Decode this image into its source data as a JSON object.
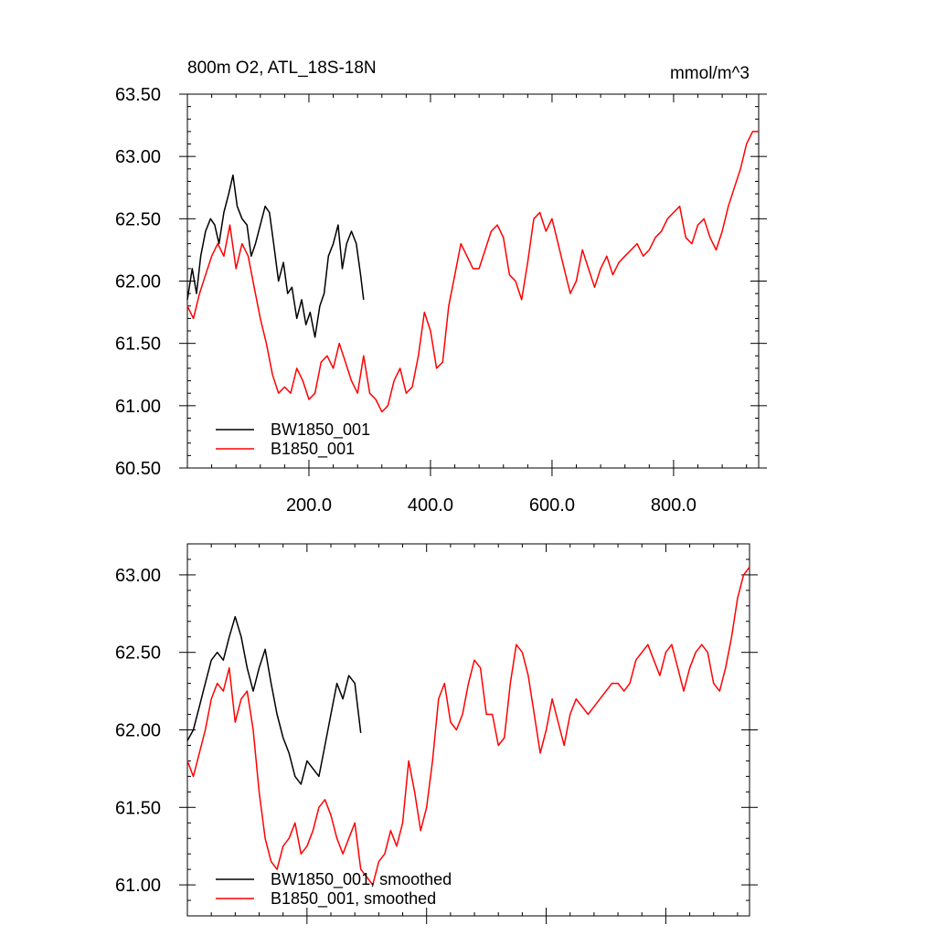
{
  "chart_data": [
    {
      "type": "line",
      "title": "800m O2, ATL_18S-18N",
      "units_label": "mmol/m^3",
      "xlim": [
        0,
        940
      ],
      "ylim": [
        60.5,
        63.5
      ],
      "x_ticks": [
        200,
        400,
        600,
        800
      ],
      "x_tick_labels": [
        "200.0",
        "400.0",
        "600.0",
        "800.0"
      ],
      "y_ticks": [
        60.5,
        61.0,
        61.5,
        62.0,
        62.5,
        63.0,
        63.5
      ],
      "y_tick_labels": [
        "60.50",
        "61.00",
        "61.50",
        "62.00",
        "62.50",
        "63.00",
        "63.50"
      ],
      "legend_position": "bottom-left",
      "series": [
        {
          "name": "BW1850_001",
          "color": "#000000",
          "x": [
            0,
            8,
            15,
            22,
            30,
            38,
            45,
            52,
            60,
            68,
            75,
            82,
            90,
            98,
            105,
            112,
            120,
            128,
            135,
            142,
            150,
            158,
            165,
            172,
            180,
            188,
            195,
            202,
            210,
            218,
            225,
            232,
            240,
            248,
            255,
            262,
            270,
            278,
            285,
            290
          ],
          "y": [
            61.85,
            62.1,
            61.9,
            62.2,
            62.4,
            62.5,
            62.45,
            62.3,
            62.55,
            62.7,
            62.85,
            62.6,
            62.5,
            62.45,
            62.2,
            62.3,
            62.45,
            62.6,
            62.55,
            62.3,
            62.0,
            62.15,
            61.9,
            61.95,
            61.7,
            61.85,
            61.65,
            61.75,
            61.55,
            61.8,
            61.9,
            62.2,
            62.3,
            62.45,
            62.1,
            62.3,
            62.4,
            62.3,
            62.05,
            61.85
          ]
        },
        {
          "name": "B1850_001",
          "color": "#ff0000",
          "x": [
            0,
            10,
            20,
            30,
            40,
            50,
            60,
            70,
            80,
            90,
            100,
            110,
            120,
            130,
            140,
            150,
            160,
            170,
            180,
            190,
            200,
            210,
            220,
            230,
            240,
            250,
            260,
            270,
            280,
            290,
            300,
            310,
            320,
            330,
            340,
            350,
            360,
            370,
            380,
            390,
            400,
            410,
            420,
            430,
            440,
            450,
            460,
            470,
            480,
            490,
            500,
            510,
            520,
            530,
            540,
            550,
            560,
            570,
            580,
            590,
            600,
            610,
            620,
            630,
            640,
            650,
            660,
            670,
            680,
            690,
            700,
            710,
            720,
            730,
            740,
            750,
            760,
            770,
            780,
            790,
            800,
            810,
            820,
            830,
            840,
            850,
            860,
            870,
            880,
            890,
            900,
            910,
            920,
            930,
            940
          ],
          "y": [
            61.8,
            61.7,
            61.9,
            62.05,
            62.2,
            62.3,
            62.2,
            62.45,
            62.1,
            62.3,
            62.2,
            61.95,
            61.7,
            61.5,
            61.25,
            61.1,
            61.15,
            61.1,
            61.3,
            61.2,
            61.05,
            61.1,
            61.35,
            61.4,
            61.3,
            61.5,
            61.35,
            61.2,
            61.1,
            61.4,
            61.1,
            61.05,
            60.95,
            61.0,
            61.2,
            61.3,
            61.1,
            61.15,
            61.4,
            61.75,
            61.6,
            61.3,
            61.35,
            61.8,
            62.05,
            62.3,
            62.2,
            62.1,
            62.1,
            62.25,
            62.4,
            62.45,
            62.35,
            62.05,
            62.0,
            61.85,
            62.15,
            62.5,
            62.55,
            62.4,
            62.5,
            62.3,
            62.1,
            61.9,
            62.0,
            62.25,
            62.1,
            61.95,
            62.1,
            62.2,
            62.05,
            62.15,
            62.2,
            62.25,
            62.3,
            62.2,
            62.25,
            62.35,
            62.4,
            62.5,
            62.55,
            62.6,
            62.35,
            62.3,
            62.45,
            62.5,
            62.35,
            62.25,
            62.4,
            62.6,
            62.75,
            62.9,
            63.1,
            63.2,
            63.2
          ]
        }
      ]
    },
    {
      "type": "line",
      "xlim": [
        0,
        940
      ],
      "ylim": [
        60.8,
        63.2
      ],
      "x_ticks": [
        200,
        400,
        600,
        800
      ],
      "y_ticks": [
        61.0,
        61.5,
        62.0,
        62.5,
        63.0
      ],
      "y_tick_labels": [
        "61.00",
        "61.50",
        "62.00",
        "62.50",
        "63.00"
      ],
      "legend_position": "bottom-left",
      "series": [
        {
          "name": "BW1850_001, smoothed",
          "color": "#000000",
          "x": [
            0,
            10,
            20,
            30,
            40,
            50,
            60,
            70,
            80,
            90,
            100,
            110,
            120,
            130,
            140,
            150,
            160,
            170,
            180,
            190,
            200,
            210,
            220,
            230,
            240,
            250,
            260,
            270,
            280,
            290
          ],
          "y": [
            61.93,
            62.0,
            62.15,
            62.3,
            62.45,
            62.5,
            62.45,
            62.6,
            62.73,
            62.6,
            62.4,
            62.25,
            62.4,
            62.52,
            62.3,
            62.1,
            61.95,
            61.85,
            61.7,
            61.65,
            61.8,
            61.75,
            61.7,
            61.9,
            62.1,
            62.3,
            62.2,
            62.35,
            62.3,
            61.98
          ]
        },
        {
          "name": "B1850_001, smoothed",
          "color": "#ff0000",
          "x": [
            0,
            10,
            20,
            30,
            40,
            50,
            60,
            70,
            80,
            90,
            100,
            110,
            120,
            130,
            140,
            150,
            160,
            170,
            180,
            190,
            200,
            210,
            220,
            230,
            240,
            250,
            260,
            270,
            280,
            290,
            300,
            310,
            320,
            330,
            340,
            350,
            360,
            370,
            380,
            390,
            400,
            410,
            420,
            430,
            440,
            450,
            460,
            470,
            480,
            490,
            500,
            510,
            520,
            530,
            540,
            550,
            560,
            570,
            580,
            590,
            600,
            610,
            620,
            630,
            640,
            650,
            660,
            670,
            680,
            690,
            700,
            710,
            720,
            730,
            740,
            750,
            760,
            770,
            780,
            790,
            800,
            810,
            820,
            830,
            840,
            850,
            860,
            870,
            880,
            890,
            900,
            910,
            920,
            930,
            940
          ],
          "y": [
            61.8,
            61.7,
            61.85,
            62.0,
            62.2,
            62.3,
            62.25,
            62.4,
            62.05,
            62.2,
            62.25,
            62.0,
            61.6,
            61.3,
            61.15,
            61.1,
            61.25,
            61.3,
            61.4,
            61.2,
            61.25,
            61.35,
            61.5,
            61.55,
            61.45,
            61.3,
            61.2,
            61.3,
            61.4,
            61.1,
            61.05,
            61.0,
            61.15,
            61.2,
            61.35,
            61.25,
            61.4,
            61.8,
            61.6,
            61.35,
            61.5,
            61.8,
            62.2,
            62.3,
            62.05,
            62.0,
            62.1,
            62.3,
            62.45,
            62.4,
            62.1,
            62.1,
            61.9,
            61.95,
            62.3,
            62.55,
            62.5,
            62.35,
            62.1,
            61.85,
            62.0,
            62.2,
            62.05,
            61.9,
            62.1,
            62.2,
            62.15,
            62.1,
            62.15,
            62.2,
            62.25,
            62.3,
            62.3,
            62.25,
            62.3,
            62.45,
            62.5,
            62.55,
            62.45,
            62.35,
            62.5,
            62.55,
            62.4,
            62.25,
            62.4,
            62.5,
            62.55,
            62.5,
            62.3,
            62.25,
            62.4,
            62.6,
            62.85,
            63.0,
            63.05
          ]
        }
      ]
    }
  ]
}
